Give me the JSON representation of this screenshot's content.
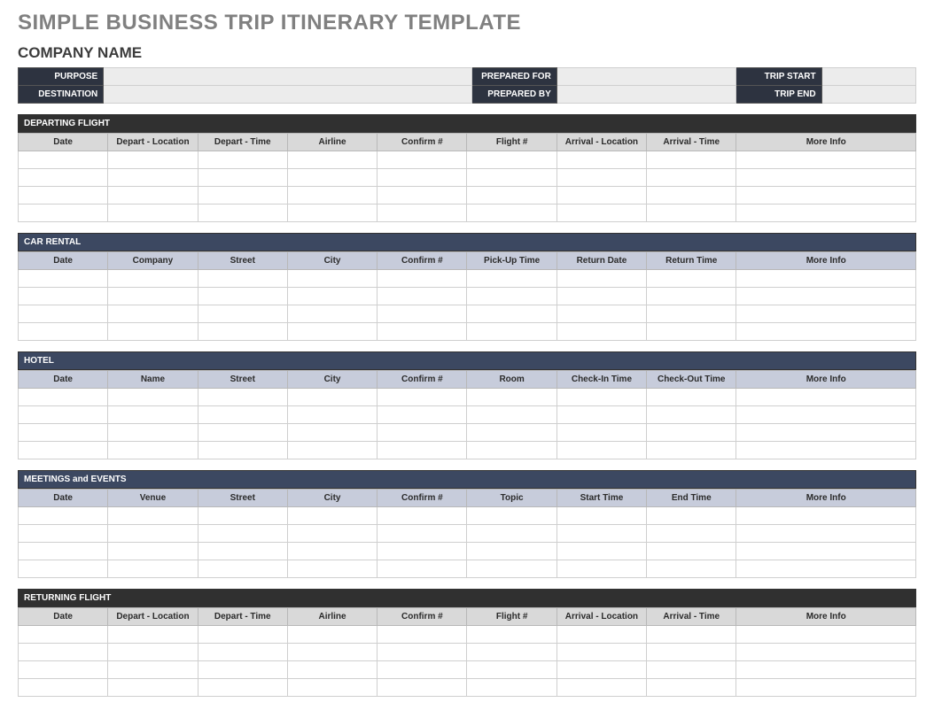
{
  "title": "SIMPLE BUSINESS TRIP ITINERARY TEMPLATE",
  "company": "COMPANY NAME",
  "meta": {
    "purpose_label": "PURPOSE",
    "destination_label": "DESTINATION",
    "prepared_for_label": "PREPARED FOR",
    "prepared_by_label": "PREPARED BY",
    "trip_start_label": "TRIP START",
    "trip_end_label": "TRIP END",
    "purpose": "",
    "destination": "",
    "prepared_for": "",
    "prepared_by": "",
    "trip_start": "",
    "trip_end": ""
  },
  "colors": {
    "title_grey": "#808080",
    "header_dark": "#303030",
    "header_blue": "#3c4861",
    "meta_label_bg": "#2d3340",
    "th_grey": "#d9d9d9",
    "th_blue": "#c7ccdb",
    "meta_value_bg": "#ececec",
    "border": "#cfcfcf"
  },
  "sections": {
    "departing_flight": {
      "title": "DEPARTING FLIGHT",
      "header_style": "dark",
      "th_style": "grey",
      "columns": [
        "Date",
        "Depart - Location",
        "Depart - Time",
        "Airline",
        "Confirm #",
        "Flight #",
        "Arrival - Location",
        "Arrival - Time",
        "More Info"
      ],
      "row_count": 4
    },
    "car_rental": {
      "title": "CAR RENTAL",
      "header_style": "blue",
      "th_style": "blue",
      "columns": [
        "Date",
        "Company",
        "Street",
        "City",
        "Confirm #",
        "Pick-Up Time",
        "Return Date",
        "Return Time",
        "More Info"
      ],
      "row_count": 4
    },
    "hotel": {
      "title": "HOTEL",
      "header_style": "blue",
      "th_style": "blue",
      "columns": [
        "Date",
        "Name",
        "Street",
        "City",
        "Confirm #",
        "Room",
        "Check-In Time",
        "Check-Out Time",
        "More Info"
      ],
      "row_count": 4
    },
    "meetings": {
      "title": "MEETINGS and EVENTS",
      "header_style": "blue",
      "th_style": "blue",
      "columns": [
        "Date",
        "Venue",
        "Street",
        "City",
        "Confirm #",
        "Topic",
        "Start Time",
        "End Time",
        "More Info"
      ],
      "row_count": 4
    },
    "returning_flight": {
      "title": "RETURNING FLIGHT",
      "header_style": "dark",
      "th_style": "grey",
      "columns": [
        "Date",
        "Depart - Location",
        "Depart - Time",
        "Airline",
        "Confirm #",
        "Flight #",
        "Arrival - Location",
        "Arrival - Time",
        "More Info"
      ],
      "row_count": 4
    }
  }
}
